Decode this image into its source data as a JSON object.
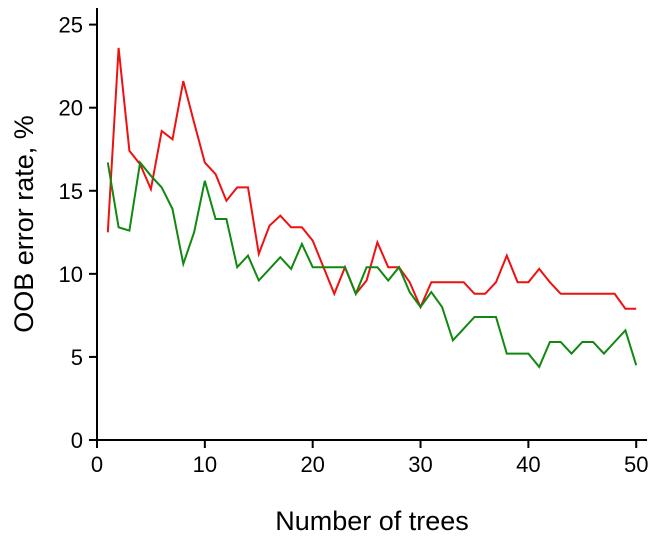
{
  "chart_data": {
    "type": "line",
    "xlabel": "Number of trees",
    "ylabel": "OOB error rate, %",
    "xlim": [
      0,
      51
    ],
    "ylim": [
      0,
      26
    ],
    "x_ticks": [
      0,
      10,
      20,
      30,
      40,
      50
    ],
    "y_ticks": [
      0,
      5,
      10,
      15,
      20,
      25
    ],
    "grid": false,
    "legend": "none",
    "series": [
      {
        "color": "#ee1111",
        "x": [
          1,
          2,
          3,
          4,
          5,
          6,
          7,
          8,
          9,
          10,
          11,
          12,
          13,
          14,
          15,
          16,
          17,
          18,
          19,
          20,
          21,
          22,
          23,
          24,
          25,
          26,
          27,
          28,
          29,
          30,
          31,
          32,
          33,
          34,
          35,
          36,
          37,
          38,
          39,
          40,
          41,
          42,
          43,
          44,
          45,
          46,
          47,
          48,
          49,
          50
        ],
        "y": [
          12.5,
          23.6,
          17.4,
          16.6,
          15.1,
          18.6,
          18.1,
          21.6,
          19.1,
          16.7,
          16.0,
          14.4,
          15.2,
          15.2,
          11.2,
          12.9,
          13.5,
          12.8,
          12.8,
          12.0,
          10.4,
          8.8,
          10.4,
          8.8,
          9.6,
          11.9,
          10.4,
          10.4,
          9.5,
          8.0,
          9.5,
          9.5,
          9.5,
          9.5,
          8.8,
          8.8,
          9.5,
          11.1,
          9.5,
          9.5,
          10.3,
          9.5,
          8.8,
          8.8,
          8.8,
          8.8,
          8.8,
          8.8,
          7.9,
          7.9
        ]
      },
      {
        "color": "#118811",
        "x": [
          1,
          2,
          3,
          4,
          5,
          6,
          7,
          8,
          9,
          10,
          11,
          12,
          13,
          14,
          15,
          16,
          17,
          18,
          19,
          20,
          21,
          22,
          23,
          24,
          25,
          26,
          27,
          28,
          29,
          30,
          31,
          32,
          33,
          34,
          35,
          36,
          37,
          38,
          39,
          40,
          41,
          42,
          43,
          44,
          45,
          46,
          47,
          48,
          49,
          50
        ],
        "y": [
          16.7,
          12.8,
          12.6,
          16.7,
          15.9,
          15.2,
          13.9,
          10.6,
          12.5,
          15.6,
          13.3,
          13.3,
          10.4,
          11.1,
          9.6,
          10.3,
          11.0,
          10.3,
          11.8,
          10.4,
          10.4,
          10.4,
          10.4,
          8.8,
          10.4,
          10.4,
          9.6,
          10.4,
          8.9,
          8.0,
          8.9,
          8.0,
          6.0,
          6.7,
          7.4,
          7.4,
          7.4,
          5.2,
          5.2,
          5.2,
          4.4,
          5.9,
          5.9,
          5.2,
          5.9,
          5.9,
          5.2,
          5.9,
          6.6,
          4.5
        ]
      }
    ]
  }
}
